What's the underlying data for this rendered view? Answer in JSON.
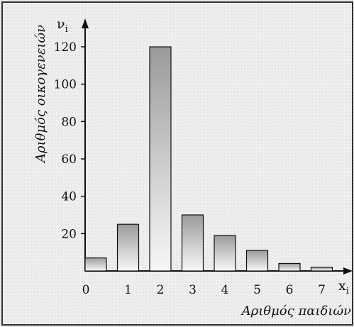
{
  "chart_data": {
    "type": "bar",
    "categories": [
      "0",
      "1",
      "2",
      "3",
      "4",
      "5",
      "6",
      "7"
    ],
    "values": [
      7,
      25,
      120,
      30,
      19,
      11,
      4,
      2
    ],
    "xlabel": "Αριθμός παιδιών",
    "ylabel": "Αριθμός οικογενειών",
    "x_symbol": "x",
    "x_symbol_sub": "i",
    "y_symbol": "ν",
    "y_symbol_sub": "i",
    "yticks": [
      20,
      40,
      60,
      80,
      100,
      120
    ],
    "ylim": [
      0,
      130
    ],
    "grid": false
  }
}
